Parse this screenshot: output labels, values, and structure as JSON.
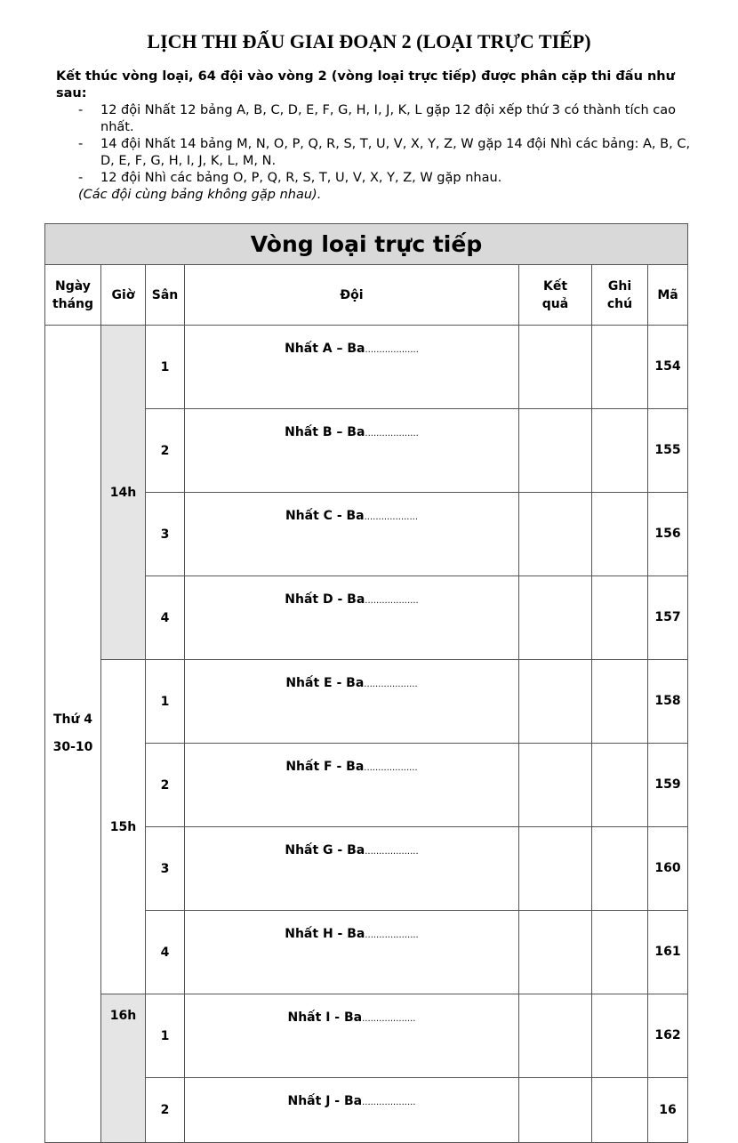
{
  "title": "LỊCH THI ĐẤU GIAI ĐOẠN 2 (LOẠI TRỰC TIẾP)",
  "intro": {
    "lead": "Kết thúc vòng loại, 64 đội vào vòng 2 (vòng loại trực tiếp) được phân cặp thi đấu như sau:",
    "items": [
      "12 đội Nhất 12 bảng A, B, C, D, E, F, G, H, I, J, K, L gặp 12 đội xếp thứ 3 có thành tích cao nhất.",
      "14 đội Nhất 14 bảng M, N, O, P, Q, R, S, T, U, V, X, Y, Z, W gặp 14 đội Nhì các bảng: A, B, C, D, E, F, G, H, I, J, K, L, M, N.",
      "12 đội Nhì các bảng O, P, Q, R, S, T, U, V, X, Y, Z, W gặp nhau."
    ],
    "dash": "-",
    "note": "(Các đội cùng bảng không gặp nhau)."
  },
  "table": {
    "caption": "Vòng loại trực tiếp",
    "headers": [
      "Ngày tháng",
      "Giờ",
      "Sân",
      "Đội",
      "Kết quả",
      "Ghi chú",
      "Mã"
    ],
    "date": "Thứ 4 30-10",
    "times": [
      "14h",
      "15h",
      "16h"
    ],
    "dots": "...................",
    "rows": [
      {
        "court": "1",
        "team": "Nhất A – Ba",
        "code": "154"
      },
      {
        "court": "2",
        "team": "Nhất B – Ba",
        "code": "155"
      },
      {
        "court": "3",
        "team": "Nhất C - Ba",
        "code": "156"
      },
      {
        "court": "4",
        "team": "Nhất D - Ba",
        "code": "157"
      },
      {
        "court": "1",
        "team": "Nhất E - Ba",
        "code": "158"
      },
      {
        "court": "2",
        "team": "Nhất F - Ba",
        "code": "159"
      },
      {
        "court": "3",
        "team": "Nhất G - Ba",
        "code": "160"
      },
      {
        "court": "4",
        "team": "Nhất H - Ba",
        "code": "161"
      },
      {
        "court": "1",
        "team": "Nhất I - Ba",
        "code": "162"
      },
      {
        "court": "2",
        "team": "Nhất J - Ba",
        "code": "16"
      }
    ]
  }
}
